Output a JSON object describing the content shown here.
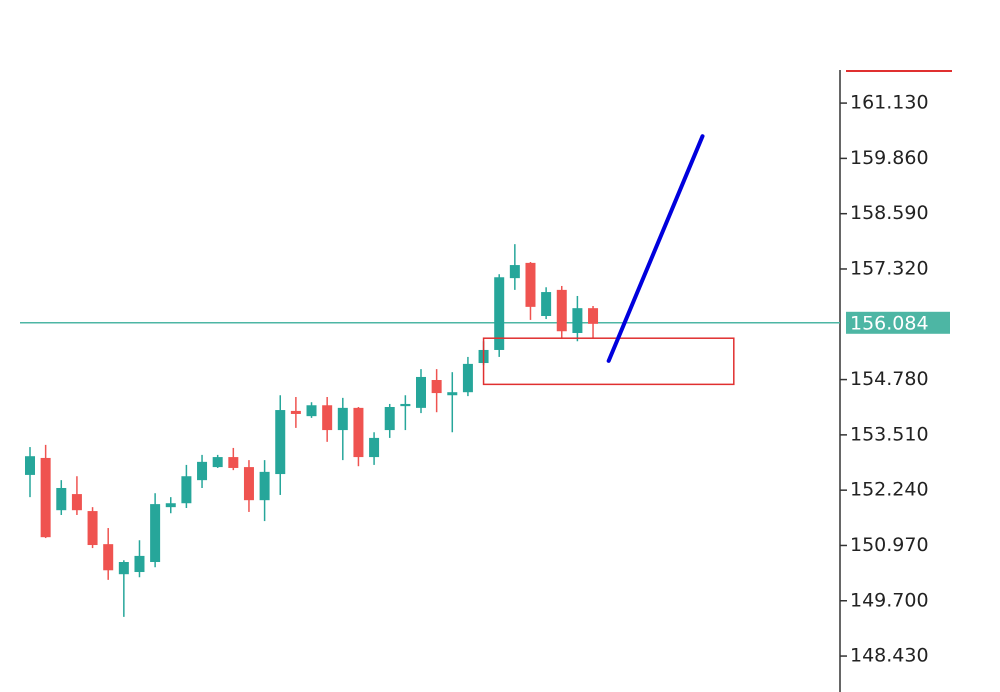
{
  "chart_data": {
    "type": "candlestick",
    "up_color": "#26a69a",
    "down_color": "#ef5350",
    "open": [
      152.59,
      152.98,
      151.78,
      152.15,
      151.76,
      151.0,
      150.31,
      150.36,
      150.59,
      151.85,
      151.94,
      152.47,
      152.77,
      153.0,
      152.77,
      152.01,
      152.61,
      154.06,
      153.94,
      154.19,
      153.62,
      154.13,
      153.0,
      153.62,
      154.17,
      154.13,
      154.77,
      154.42,
      154.49,
      155.16,
      155.46,
      157.11,
      157.46,
      156.24,
      156.84,
      155.85,
      156.42
    ],
    "high": [
      153.23,
      153.28,
      152.47,
      152.56,
      151.85,
      151.37,
      150.63,
      151.09,
      152.17,
      152.08,
      152.82,
      153.05,
      153.05,
      153.21,
      152.93,
      152.93,
      154.42,
      154.38,
      154.26,
      154.38,
      154.36,
      154.15,
      153.57,
      154.22,
      154.42,
      155.02,
      155.02,
      154.95,
      155.3,
      155.66,
      157.2,
      157.89,
      157.48,
      156.9,
      156.93,
      156.7,
      156.47
    ],
    "low": [
      152.08,
      151.14,
      151.67,
      151.67,
      150.91,
      150.18,
      149.33,
      150.24,
      150.47,
      151.71,
      151.83,
      152.29,
      152.75,
      152.7,
      151.74,
      151.53,
      152.13,
      153.67,
      153.9,
      153.35,
      152.93,
      152.79,
      152.82,
      153.44,
      153.62,
      154.01,
      154.03,
      153.57,
      154.4,
      155.11,
      155.3,
      156.84,
      156.15,
      156.17,
      155.73,
      155.66,
      155.73
    ],
    "close": [
      153.02,
      151.16,
      152.29,
      151.78,
      150.98,
      150.4,
      150.59,
      150.73,
      151.92,
      151.94,
      152.56,
      152.89,
      153.0,
      152.75,
      152.01,
      152.66,
      154.08,
      153.99,
      154.19,
      153.62,
      154.13,
      153.0,
      153.44,
      154.15,
      154.22,
      154.84,
      154.47,
      154.49,
      155.14,
      155.46,
      157.13,
      157.41,
      156.45,
      156.79,
      155.89,
      156.42,
      156.06
    ],
    "ylim": [
      147.88,
      161.89
    ],
    "yticks": [
      {
        "value": 161.13,
        "label": "161.130"
      },
      {
        "value": 159.86,
        "label": "159.860"
      },
      {
        "value": 158.59,
        "label": "158.590"
      },
      {
        "value": 157.32,
        "label": "157.320"
      },
      {
        "value": 154.78,
        "label": "154.780"
      },
      {
        "value": 153.51,
        "label": "153.510"
      },
      {
        "value": 152.24,
        "label": "152.240"
      },
      {
        "value": 150.97,
        "label": "150.970"
      },
      {
        "value": 149.7,
        "label": "149.700"
      },
      {
        "value": 148.43,
        "label": "148.430"
      }
    ],
    "price_line": {
      "value": 156.084,
      "color": "#4db6a4"
    },
    "trendline": {
      "x": [
        37,
        43
      ],
      "y": [
        155.21,
        160.37
      ],
      "color": "#0000dd"
    },
    "zone": {
      "x": [
        29,
        45
      ],
      "y": [
        154.67,
        155.73
      ],
      "color": "#e03030"
    }
  }
}
